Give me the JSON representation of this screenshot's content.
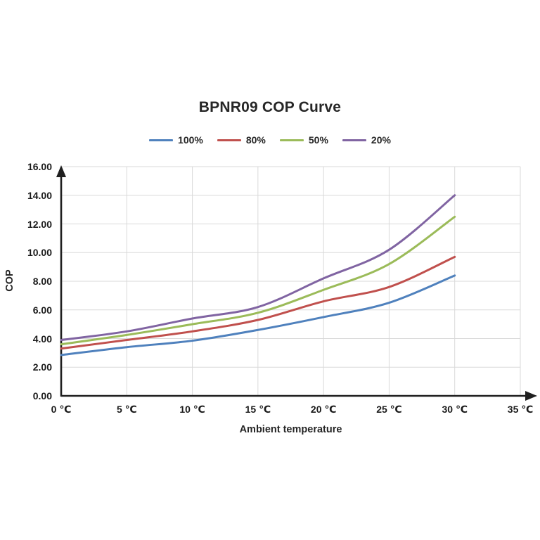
{
  "chart_data": {
    "type": "line",
    "title": "BPNR09 COP Curve",
    "xlabel": "Ambient temperature",
    "ylabel": "COP",
    "x": [
      0,
      5,
      10,
      15,
      20,
      25,
      30
    ],
    "series": [
      {
        "name": "100%",
        "color": "#4F81BD",
        "values": [
          2.85,
          3.4,
          3.85,
          4.6,
          5.5,
          6.5,
          8.4
        ]
      },
      {
        "name": "80%",
        "color": "#C0504D",
        "values": [
          3.3,
          3.9,
          4.5,
          5.3,
          6.6,
          7.6,
          9.7
        ]
      },
      {
        "name": "50%",
        "color": "#9BBB59",
        "values": [
          3.6,
          4.25,
          5.0,
          5.8,
          7.4,
          9.2,
          12.5
        ]
      },
      {
        "name": "20%",
        "color": "#8064A2",
        "values": [
          3.9,
          4.5,
          5.4,
          6.2,
          8.2,
          10.2,
          14.0
        ]
      }
    ],
    "xlim": [
      0,
      35
    ],
    "ylim": [
      0,
      16
    ],
    "y_ticks": [
      "0.00",
      "2.00",
      "4.00",
      "6.00",
      "8.00",
      "10.00",
      "12.00",
      "14.00",
      "16.00"
    ],
    "x_ticks": [
      "0 ℃",
      "5 ℃",
      "10 ℃",
      "15 ℃",
      "20 ℃",
      "25 ℃",
      "30 ℃",
      "35 ℃"
    ],
    "grid": true,
    "grid_color": "#d9d9d9",
    "axis_color": "#1f1f1f",
    "legend_position": "top",
    "line_style": "smooth"
  }
}
